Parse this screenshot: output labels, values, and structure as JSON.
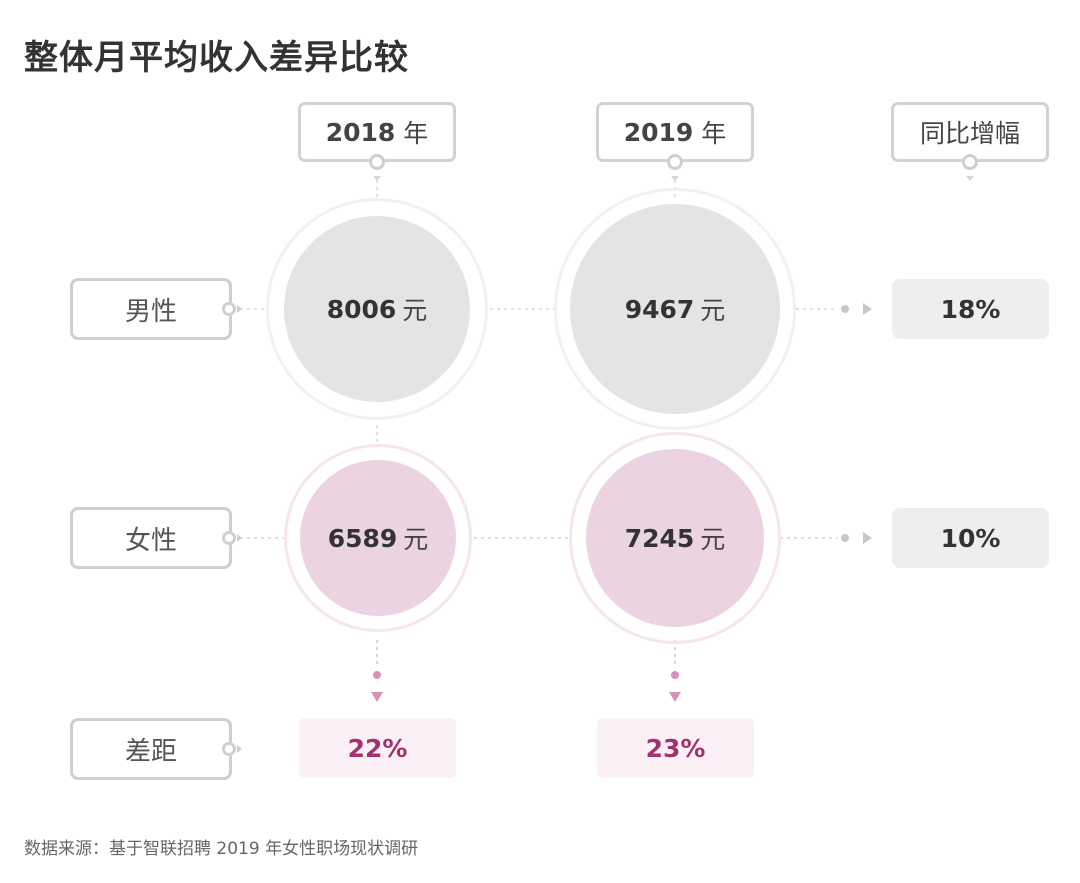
{
  "title": "整体月平均收入差异比较",
  "columns": {
    "y2018": {
      "year": "2018",
      "unit": "年"
    },
    "y2019": {
      "year": "2019",
      "unit": "年"
    },
    "growth": "同比增幅"
  },
  "rows": {
    "male": "男性",
    "female": "女性",
    "gap": "差距"
  },
  "values": {
    "male_2018": "8006",
    "male_2019": "9467",
    "female_2018": "6589",
    "female_2019": "7245",
    "currency": "元"
  },
  "growth": {
    "male": "18%",
    "female": "10%"
  },
  "gap": {
    "y2018": "22%",
    "y2019": "23%"
  },
  "colors": {
    "male_fill": "#e4e4e4",
    "female_fill": "#ecd3e1",
    "gap_text": "#a3316e",
    "border": "#cfcfcf"
  },
  "source": "数据来源：基于智联招聘 2019 年女性职场现状调研"
}
